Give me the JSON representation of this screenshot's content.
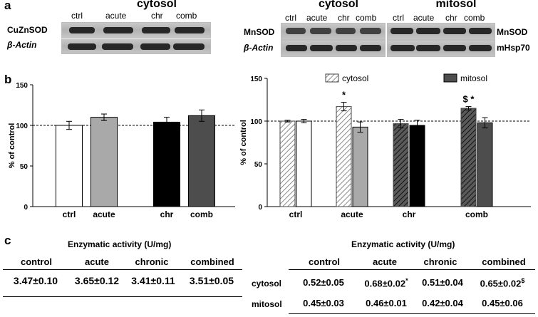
{
  "panels": {
    "a": "a",
    "b": "b",
    "c": "c"
  },
  "blot_left": {
    "heading": "cytosol",
    "lanes": [
      "ctrl",
      "acute",
      "chr",
      "comb"
    ],
    "row_labels": [
      "CuZnSOD",
      "β-Actin"
    ]
  },
  "blot_right": {
    "heading_cyt": "cytosol",
    "heading_mit": "mitosol",
    "lanes_cyt": [
      "ctrl",
      "acute",
      "chr",
      "comb"
    ],
    "lanes_mit": [
      "ctrl",
      "acute",
      "chr",
      "comb"
    ],
    "row_labels_left": [
      "MnSOD",
      "β-Actin"
    ],
    "row_labels_right": [
      "MnSOD",
      "mHsp70"
    ]
  },
  "chart_data": [
    {
      "type": "bar",
      "categories": [
        "ctrl",
        "acute",
        "chr",
        "comb"
      ],
      "values": [
        100,
        110,
        104,
        112
      ],
      "errors": [
        5,
        4,
        6,
        7
      ],
      "colors": [
        "#ffffff",
        "#a9a9a9",
        "#000000",
        "#4d4d4d"
      ],
      "ylabel": "% of control",
      "ylim": [
        0,
        150
      ],
      "yticks": [
        "0",
        "50",
        "100",
        "150"
      ],
      "reference_line": 100
    },
    {
      "type": "bar",
      "categories": [
        "ctrl",
        "acute",
        "chr",
        "comb"
      ],
      "series": [
        {
          "name": "cytosol",
          "values": [
            100,
            117,
            97,
            115
          ],
          "errors": [
            1,
            5,
            5,
            2
          ],
          "pattern": "hatched"
        },
        {
          "name": "mitosol",
          "values": [
            100,
            93,
            95,
            98
          ],
          "errors": [
            2,
            6,
            6,
            6
          ]
        }
      ],
      "ylabel": "% of control",
      "ylim": [
        0,
        150
      ],
      "yticks": [
        "0",
        "50",
        "100",
        "150"
      ],
      "reference_line": 100,
      "legend": "top",
      "annotations": [
        {
          "category": "acute",
          "series": "cytosol",
          "text": "*"
        },
        {
          "category": "comb",
          "series": "cytosol",
          "text": "$ *"
        }
      ]
    }
  ],
  "table_left": {
    "title": "Enzymatic activity (U/mg)",
    "headers": [
      "control",
      "acute",
      "chronic",
      "combined"
    ],
    "values": [
      "3.47±0.10",
      "3.65±0.12",
      "3.41±0.11",
      "3.51±0.05"
    ]
  },
  "table_right": {
    "title": "Enzymatic activity (U/mg)",
    "headers": [
      "control",
      "acute",
      "chronic",
      "combined"
    ],
    "rows": [
      {
        "label": "cytosol",
        "values": [
          "0.52±0.05",
          "0.68±0.02",
          "0.51±0.04",
          "0.65±0.02"
        ],
        "marks": [
          "",
          "*",
          "",
          "$"
        ]
      },
      {
        "label": "mitosol",
        "values": [
          "0.45±0.03",
          "0.46±0.01",
          "0.42±0.04",
          "0.45±0.06"
        ],
        "marks": [
          "",
          "",
          "",
          ""
        ]
      }
    ]
  }
}
